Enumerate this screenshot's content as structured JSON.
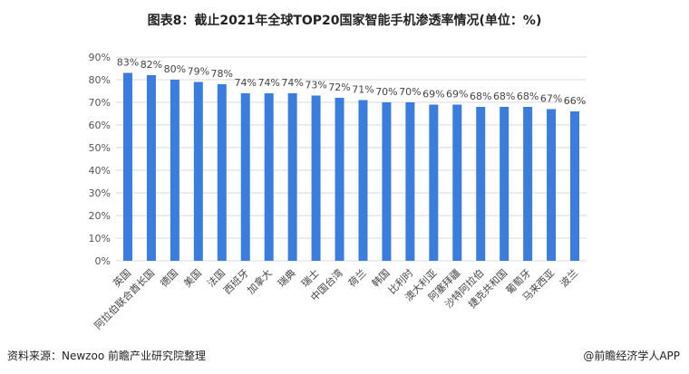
{
  "title": "图表8：截止2021年全球TOP20国家智能手机渗透率情况(单位：%)",
  "footer": {
    "source": "资料来源：Newzoo 前瞻产业研究院整理",
    "brand": "@前瞻经济学人APP"
  },
  "watermark": "前瞻产业研究院",
  "chart_data": {
    "type": "bar",
    "title": "图表8：截止2021年全球TOP20国家智能手机渗透率情况(单位：%)",
    "categories": [
      "英国",
      "阿拉伯联合酋长国",
      "德国",
      "美国",
      "法国",
      "西班牙",
      "加拿大",
      "瑞典",
      "瑞士",
      "中国台湾",
      "荷兰",
      "韩国",
      "比利时",
      "澳大利亚",
      "阿塞拜疆",
      "沙特阿拉伯",
      "捷克共和国",
      "葡萄牙",
      "马来西亚",
      "波兰"
    ],
    "values": [
      83,
      82,
      80,
      79,
      78,
      74,
      74,
      74,
      73,
      72,
      71,
      70,
      70,
      69,
      69,
      68,
      68,
      68,
      67,
      66
    ],
    "ylim": [
      0,
      90
    ],
    "yticks": [
      0,
      10,
      20,
      30,
      40,
      50,
      60,
      70,
      80,
      90
    ],
    "tick_suffix": "%",
    "grid": true,
    "bar_color": "#3b7ddd"
  }
}
